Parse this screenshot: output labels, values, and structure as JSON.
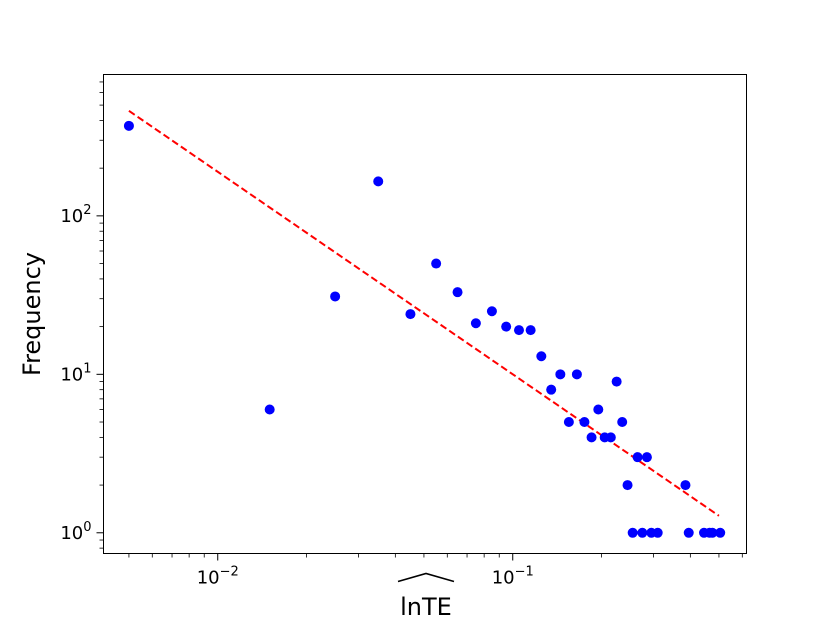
{
  "chart_data": {
    "type": "scatter",
    "title": "",
    "xlabel": "lnTE",
    "ylabel": "Frequency",
    "xscale": "log",
    "yscale": "log",
    "xlim": [
      0.0041,
      0.62
    ],
    "ylim": [
      0.74,
      780
    ],
    "grid": false,
    "legend": "none",
    "x_ticks": [
      {
        "base": "10",
        "exp": "−2",
        "value": 0.01
      },
      {
        "base": "10",
        "exp": "−1",
        "value": 0.1
      }
    ],
    "y_ticks": [
      {
        "base": "10",
        "exp": "0",
        "value": 1
      },
      {
        "base": "10",
        "exp": "1",
        "value": 10
      },
      {
        "base": "10",
        "exp": "2",
        "value": 100
      }
    ],
    "series": [
      {
        "kind": "points",
        "color": "#0000ff",
        "points": [
          {
            "x": 0.005,
            "y": 370
          },
          {
            "x": 0.015,
            "y": 6
          },
          {
            "x": 0.025,
            "y": 31
          },
          {
            "x": 0.035,
            "y": 165
          },
          {
            "x": 0.045,
            "y": 24
          },
          {
            "x": 0.055,
            "y": 50
          },
          {
            "x": 0.065,
            "y": 33
          },
          {
            "x": 0.075,
            "y": 21
          },
          {
            "x": 0.085,
            "y": 25
          },
          {
            "x": 0.095,
            "y": 20
          },
          {
            "x": 0.105,
            "y": 19
          },
          {
            "x": 0.115,
            "y": 19
          },
          {
            "x": 0.125,
            "y": 13
          },
          {
            "x": 0.135,
            "y": 8
          },
          {
            "x": 0.145,
            "y": 10
          },
          {
            "x": 0.155,
            "y": 5
          },
          {
            "x": 0.165,
            "y": 10
          },
          {
            "x": 0.175,
            "y": 5
          },
          {
            "x": 0.185,
            "y": 4
          },
          {
            "x": 0.195,
            "y": 6
          },
          {
            "x": 0.205,
            "y": 4
          },
          {
            "x": 0.215,
            "y": 4
          },
          {
            "x": 0.225,
            "y": 9
          },
          {
            "x": 0.235,
            "y": 5
          },
          {
            "x": 0.245,
            "y": 2
          },
          {
            "x": 0.255,
            "y": 1
          },
          {
            "x": 0.265,
            "y": 3
          },
          {
            "x": 0.275,
            "y": 1
          },
          {
            "x": 0.285,
            "y": 3
          },
          {
            "x": 0.295,
            "y": 1
          },
          {
            "x": 0.31,
            "y": 1
          },
          {
            "x": 0.385,
            "y": 2
          },
          {
            "x": 0.395,
            "y": 1
          },
          {
            "x": 0.445,
            "y": 1
          },
          {
            "x": 0.465,
            "y": 1
          },
          {
            "x": 0.475,
            "y": 1
          },
          {
            "x": 0.505,
            "y": 1
          }
        ]
      },
      {
        "kind": "fit",
        "color": "#ff0000",
        "style": "dashed",
        "points": [
          {
            "x": 0.005,
            "y": 460
          },
          {
            "x": 0.5,
            "y": 1.28
          }
        ]
      }
    ]
  }
}
